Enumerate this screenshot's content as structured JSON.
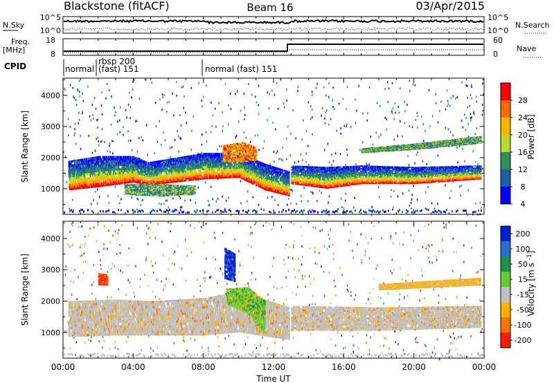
{
  "header": {
    "title": "Blackstone (fitACF)",
    "beam": "Beam 16",
    "date": "03/Apr/2015"
  },
  "sky_panel": {
    "left_label": "N.Sky",
    "left_ticks": [
      "10^5",
      "10^0"
    ],
    "right_label": "N.Search",
    "right_ticks": [
      "10^5",
      "10^0"
    ]
  },
  "freq_panel": {
    "left_label_line1": "Freq.",
    "left_label_line2": "[MHz]",
    "left_ticks": [
      "18",
      "8"
    ],
    "right_label": "Nave",
    "right_ticks": [
      "60",
      "0"
    ]
  },
  "cpid_panel": {
    "label": "CPID",
    "segments": [
      {
        "line1": "normal",
        "line2": ""
      },
      {
        "line1": "rbsp 200",
        "line2": "(fast) 151"
      },
      {
        "line1": "normal (fast) 151",
        "line2": ""
      }
    ]
  },
  "x_axis": {
    "label": "Time UT",
    "ticks": [
      "00:00",
      "04:00",
      "08:00",
      "12:00",
      "16:00",
      "20:00",
      "00:00"
    ]
  },
  "chart_data": [
    {
      "type": "heatmap",
      "ylabel": "Slant Range [km]",
      "yticks": [
        1000,
        2000,
        3000,
        4000
      ],
      "ylim": [
        180,
        4550
      ],
      "xlim": [
        0,
        24
      ],
      "colorbar": {
        "label": "Power [dB]",
        "ticks": [
          "28",
          "24",
          "20",
          "16",
          "12",
          "8",
          "4"
        ],
        "colors": [
          "#ff0000",
          "#ff6a00",
          "#ffb400",
          "#bcd82b",
          "#2f8f5a",
          "#1f5fa0",
          "#0000ff"
        ]
      },
      "bands": [
        {
          "t_start": 0.3,
          "t_end": 12.9,
          "ranges": [
            [
              0.3,
              1900,
              950
            ],
            [
              2,
              2050,
              1050
            ],
            [
              4,
              2050,
              1200
            ],
            [
              4.8,
              1850,
              1100
            ],
            [
              8,
              2150,
              1300
            ],
            [
              10,
              2150,
              1350
            ],
            [
              11.5,
              1800,
              950
            ],
            [
              12.9,
              1550,
              750
            ]
          ]
        },
        {
          "t_start": 13.0,
          "t_end": 23.8,
          "ranges": [
            [
              13,
              1750,
              1150
            ],
            [
              15,
              1700,
              1000
            ],
            [
              17,
              1750,
              1150
            ],
            [
              20,
              1700,
              1150
            ],
            [
              23.8,
              1750,
              1300
            ]
          ]
        },
        {
          "t_start": 3.5,
          "t_end": 7.5,
          "ranges": [
            [
              3.5,
              1150,
              800
            ],
            [
              5.5,
              1150,
              750
            ],
            [
              7.5,
              1100,
              800
            ]
          ]
        },
        {
          "t_start": 9.1,
          "t_end": 11.0,
          "ranges": [
            [
              9.1,
              2400,
              1850
            ],
            [
              10.2,
              2500,
              1850
            ],
            [
              11,
              2350,
              1900
            ]
          ]
        },
        {
          "t_start": 17.0,
          "t_end": 23.8,
          "ranges": [
            [
              17,
              2300,
              2150
            ],
            [
              20,
              2450,
              2250
            ],
            [
              23.8,
              2700,
              2450
            ]
          ]
        }
      ]
    },
    {
      "type": "heatmap",
      "ylabel": "Slant Range [km]",
      "yticks": [
        1000,
        2000,
        3000,
        4000
      ],
      "ylim": [
        180,
        4550
      ],
      "xlim": [
        0,
        24
      ],
      "colorbar": {
        "label": "Velocity [m s^-1]",
        "ticks": [
          "200",
          "100",
          "50",
          "15",
          "-15",
          "-50",
          "-100",
          "-200"
        ],
        "colors": [
          "#0020d0",
          "#2a6fcc",
          "#1f8f4a",
          "#66cc33",
          "#c0c0c0",
          "#ffb000",
          "#ff7000",
          "#ff1a00"
        ]
      },
      "bands": [
        {
          "t_start": 0.3,
          "t_end": 12.9,
          "ranges": [
            [
              0.3,
              2000,
              850
            ],
            [
              3,
              2050,
              900
            ],
            [
              5,
              2000,
              900
            ],
            [
              8,
              2100,
              900
            ],
            [
              10,
              2300,
              1000
            ],
            [
              12.9,
              1800,
              750
            ]
          ]
        },
        {
          "t_start": 13.0,
          "t_end": 23.8,
          "ranges": [
            [
              13,
              1850,
              1050
            ],
            [
              18,
              1800,
              1050
            ],
            [
              23.8,
              1850,
              1150
            ]
          ]
        },
        {
          "t_start": 9.3,
          "t_end": 11.5,
          "ranges": [
            [
              9.3,
              2400,
              1900
            ],
            [
              10.5,
              2450,
              1600
            ],
            [
              11.5,
              2000,
              900
            ]
          ]
        },
        {
          "t_start": 9.2,
          "t_end": 9.8,
          "ranges": [
            [
              9.2,
              3700,
              2700
            ],
            [
              9.8,
              3500,
              2600
            ]
          ]
        },
        {
          "t_start": 2.0,
          "t_end": 2.5,
          "ranges": [
            [
              2.0,
              2900,
              2500
            ],
            [
              2.5,
              2850,
              2500
            ]
          ]
        },
        {
          "t_start": 18.0,
          "t_end": 23.8,
          "ranges": [
            [
              18,
              2550,
              2350
            ],
            [
              23.8,
              2750,
              2500
            ]
          ]
        }
      ]
    }
  ]
}
